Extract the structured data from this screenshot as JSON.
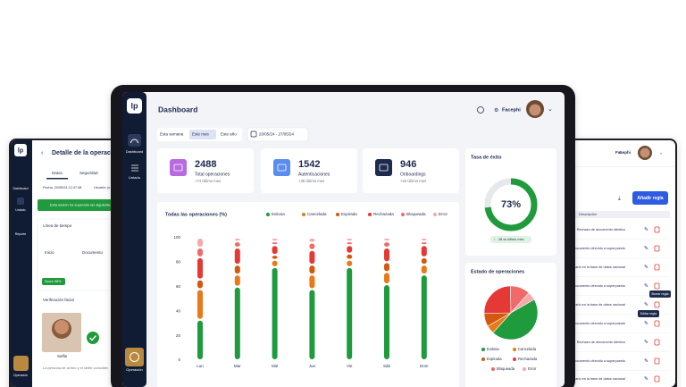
{
  "sidebar": {
    "logo": "lp",
    "items": [
      "Dashboard",
      "Listado"
    ],
    "bottom": "Operación"
  },
  "header": {
    "title": "Dashboard",
    "user": "Facephi"
  },
  "filters": {
    "tabs": [
      "Esta semana",
      "Este mes",
      "Este año"
    ],
    "active": 1,
    "date_range": "20/05/24 - 27/05/24"
  },
  "stats": [
    {
      "value": 2488,
      "label": "Total operaciones",
      "change": "+74 Último mes",
      "color": "#b86adf"
    },
    {
      "value": 1542,
      "label": "Autenticaciones",
      "change": "+36 Último mes",
      "color": "#5b8def"
    },
    {
      "value": 946,
      "label": "Onboardings",
      "change": "+15 Último mes",
      "color": "#1d2a4d"
    }
  ],
  "success_rate": {
    "title": "Tasa de éxito",
    "value": 73,
    "label": "73%",
    "change": "28 vs último mes",
    "color": "#1f9a3c"
  },
  "operations_chart": {
    "type": "bar",
    "stacked": true,
    "title": "Todas las operaciones (%)",
    "categories": [
      "Lun",
      "Mar",
      "Mié",
      "Jue",
      "Vie",
      "Sáb",
      "Dom"
    ],
    "series": [
      {
        "name": "Exitosa",
        "color": "#1f9a3c",
        "values": [
          33,
          60,
          76,
          58,
          76,
          62,
          70
        ]
      },
      {
        "name": "Cancelada",
        "color": "#e87a1a",
        "values": [
          25,
          10,
          6,
          12,
          6,
          10,
          8
        ]
      },
      {
        "name": "Expirada",
        "color": "#d2590e",
        "values": [
          8,
          8,
          4,
          8,
          5,
          8,
          6
        ]
      },
      {
        "name": "Rechazada",
        "color": "#e53935",
        "values": [
          18,
          14,
          8,
          12,
          7,
          12,
          10
        ]
      },
      {
        "name": "Bloqueada",
        "color": "#f06a6a",
        "values": [
          8,
          5,
          3,
          6,
          3,
          5,
          3
        ]
      },
      {
        "name": "Error",
        "color": "#f7a8a8",
        "values": [
          8,
          3,
          3,
          4,
          3,
          3,
          3
        ]
      }
    ],
    "ylim": [
      0,
      100
    ],
    "yticks": [
      0,
      20,
      40,
      60,
      80,
      100
    ]
  },
  "status_chart": {
    "type": "pie",
    "title": "Estado de operaciones",
    "categories": [
      "Exitosa",
      "Cancelada",
      "Expirada",
      "Rechazada",
      "Bloqueada",
      "Error"
    ],
    "values": [
      45,
      5,
      8,
      25,
      12,
      5
    ],
    "colors": [
      "#1f9a3c",
      "#e87a1a",
      "#d2590e",
      "#e53935",
      "#f06a6a",
      "#f7a8a8"
    ]
  },
  "left_screen": {
    "sidebar": [
      "Dashboard",
      "Listado",
      "Reporte"
    ],
    "bottom": "Operación",
    "title": "Detalle de la operación",
    "tabs": [
      "Datos",
      "Seguridad"
    ],
    "date": "Fecha: 20/05/24 12:47:48",
    "user": "Usuario: jo",
    "alert": "Esta sesión ha superado las siguientes validaciones",
    "timeline": "Línea de tiempo",
    "steps": [
      "Inicio",
      "Documento"
    ],
    "score": "Score 98%",
    "face_title": "Verificación facial",
    "selfie": "Selfie",
    "face_note": "La persona de la foto y el selfie coinciden"
  },
  "right_screen": {
    "user": "Facephi",
    "button": "Añadir regla",
    "column": "Descripción",
    "rows": [
      "Rechazo de documento idéntico",
      "Documento ofrecido a superpuesto",
      "Usuario en la base de datos nacional",
      "Documento ofrecido a superpuesto",
      "Usuario en la base de datos nacional",
      "Documento ofrecido a superpuesto",
      "Rechazo de documento idéntico",
      "Documento ofrecido a superpuesto",
      "Usuario en la base de datos nacional"
    ],
    "tooltips": [
      "Borrar regla",
      "Editar regla"
    ]
  }
}
